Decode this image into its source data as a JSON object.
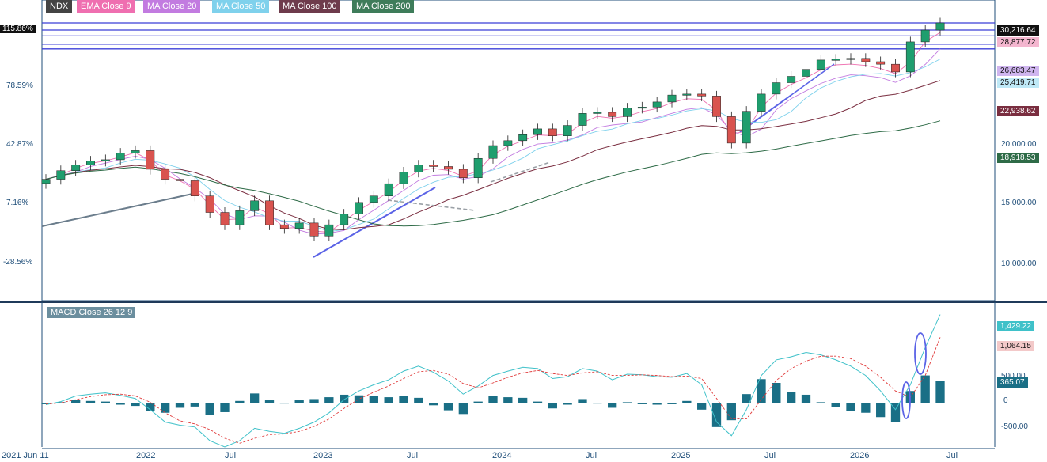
{
  "legend": [
    {
      "label": "NDX",
      "color": "#444444"
    },
    {
      "label": "EMA  Close 9",
      "color": "#ef6fb0"
    },
    {
      "label": "MA  Close 20",
      "color": "#c27be0"
    },
    {
      "label": "MA  Close 50",
      "color": "#7fd1ec"
    },
    {
      "label": "MA  Close 100",
      "color": "#6e3b4c"
    },
    {
      "label": "MA  Close 200",
      "color": "#3e7c5a"
    }
  ],
  "price_axis": {
    "left_pct_labels": [
      "115.86%",
      "78.59%",
      "42.87%",
      "7.16%",
      "-28.56%"
    ],
    "right_ticks": [
      "20,000.00",
      "15,000.00",
      "10,000.00"
    ],
    "price_tags": [
      {
        "label": "30,216.64",
        "bg": "#111111",
        "fg": "#ffffff"
      },
      {
        "label": "28,877.72",
        "bg": "#f4b6cf",
        "fg": "#111111"
      },
      {
        "label": "26,683.47",
        "bg": "#cfb5ef",
        "fg": "#111111"
      },
      {
        "label": "25,419.71",
        "bg": "#bfe9f7",
        "fg": "#111111"
      },
      {
        "label": "22,938.62",
        "bg": "#7a2e40",
        "fg": "#ffffff"
      },
      {
        "label": "18,918.53",
        "bg": "#2e6b47",
        "fg": "#ffffff"
      }
    ]
  },
  "x_axis": {
    "labels": [
      "2021 Jun 11",
      "2022",
      "Jul",
      "2023",
      "Jul",
      "2024",
      "Jul",
      "2025",
      "Jul",
      "2026",
      "Jul"
    ]
  },
  "macd": {
    "label": "MACD  Close 26 12 9",
    "right_ticks": [
      "500.00",
      "0",
      "-500.00"
    ],
    "tags": [
      {
        "label": "1,429.22",
        "bg": "#3fc1c9",
        "fg": "#ffffff"
      },
      {
        "label": "1,064.15",
        "bg": "#f3c9c9",
        "fg": "#111111"
      },
      {
        "label": "365.07",
        "bg": "#1a6f86",
        "fg": "#ffffff"
      }
    ]
  },
  "chart_data": [
    {
      "type": "candlestick",
      "title": "NDX",
      "x": [
        "2021-06",
        "2021-07",
        "2021-08",
        "2021-09",
        "2021-10",
        "2021-11",
        "2021-12",
        "2022-01",
        "2022-02",
        "2022-03",
        "2022-04",
        "2022-05",
        "2022-06",
        "2022-07",
        "2022-08",
        "2022-09",
        "2022-10",
        "2022-11",
        "2022-12",
        "2023-01",
        "2023-02",
        "2023-03",
        "2023-04",
        "2023-05",
        "2023-06",
        "2023-07",
        "2023-08",
        "2023-09",
        "2023-10",
        "2023-11",
        "2023-12",
        "2024-01",
        "2024-02",
        "2024-03",
        "2024-04",
        "2024-05",
        "2024-06",
        "2024-07",
        "2024-08",
        "2024-09",
        "2024-10",
        "2024-11",
        "2024-12",
        "2025-01",
        "2025-02",
        "2025-03",
        "2025-04",
        "2025-05",
        "2025-06",
        "2025-07",
        "2025-08",
        "2025-09",
        "2025-10",
        "2025-11",
        "2025-12",
        "2026-01",
        "2026-02",
        "2026-03",
        "2026-04",
        "2026-05",
        "2026-06"
      ],
      "y": [
        14300,
        14900,
        15300,
        15600,
        15700,
        16200,
        16400,
        15000,
        14300,
        14200,
        13200,
        12200,
        11500,
        12300,
        12900,
        11500,
        11300,
        11600,
        10900,
        11500,
        12100,
        12800,
        13200,
        14000,
        14800,
        15300,
        15200,
        15000,
        14400,
        15800,
        16800,
        17200,
        17700,
        18200,
        17600,
        18500,
        19600,
        19700,
        19300,
        20100,
        20200,
        20700,
        21400,
        21500,
        21300,
        19300,
        17000,
        19800,
        21500,
        22700,
        23400,
        24200,
        25300,
        25400,
        25500,
        25100,
        24800,
        23900,
        27600,
        29200,
        30216.64
      ],
      "series": [
        {
          "name": "EMA  Close 9",
          "last": 28877.72
        },
        {
          "name": "MA  Close 20",
          "last": 26683.47
        },
        {
          "name": "MA  Close 50",
          "last": 25419.71
        },
        {
          "name": "MA  Close 100",
          "last": 22938.62
        },
        {
          "name": "MA  Close 200",
          "last": 18918.53
        }
      ],
      "horizontal_levels": [
        30216.64,
        29200,
        28400,
        27300,
        26683.47
      ],
      "ylim": [
        8000,
        31500
      ]
    },
    {
      "type": "bar",
      "title": "MACD  Close 26 12 9",
      "series": [
        {
          "name": "MACD",
          "values": [
            -20,
            30,
            120,
            150,
            170,
            130,
            80,
            -100,
            -300,
            -350,
            -380,
            -600,
            -700,
            -600,
            -400,
            -450,
            -480,
            -400,
            -300,
            -150,
            60,
            200,
            300,
            380,
            520,
            600,
            500,
            360,
            150,
            280,
            450,
            520,
            580,
            560,
            400,
            430,
            560,
            520,
            380,
            470,
            460,
            430,
            420,
            480,
            300,
            -300,
            -520,
            -100,
            450,
            700,
            750,
            820,
            780,
            700,
            600,
            450,
            200,
            -100,
            300,
            900,
            1429.22
          ]
        },
        {
          "name": "Signal",
          "values": [
            -10,
            10,
            60,
            110,
            140,
            150,
            120,
            20,
            -150,
            -280,
            -330,
            -420,
            -560,
            -640,
            -560,
            -500,
            -490,
            -450,
            -370,
            -250,
            -80,
            70,
            180,
            280,
            400,
            510,
            530,
            470,
            320,
            250,
            330,
            420,
            490,
            530,
            480,
            450,
            490,
            510,
            450,
            450,
            460,
            450,
            430,
            440,
            400,
            80,
            -250,
            -250,
            60,
            370,
            560,
            680,
            760,
            760,
            720,
            600,
            420,
            200,
            100,
            450,
            1064.15
          ]
        },
        {
          "name": "Histogram",
          "values": [
            -10,
            20,
            60,
            40,
            30,
            -20,
            -40,
            -120,
            -150,
            -70,
            -50,
            -180,
            -140,
            40,
            160,
            50,
            10,
            50,
            70,
            100,
            140,
            130,
            120,
            100,
            120,
            90,
            -30,
            -110,
            -170,
            30,
            120,
            100,
            90,
            30,
            -80,
            -20,
            70,
            10,
            -70,
            20,
            0,
            -20,
            -10,
            40,
            -100,
            -380,
            -270,
            150,
            390,
            330,
            190,
            140,
            20,
            -60,
            -120,
            -150,
            -220,
            -300,
            200,
            450,
            365.07
          ]
        }
      ],
      "ylim": [
        -700,
        1500
      ]
    }
  ]
}
